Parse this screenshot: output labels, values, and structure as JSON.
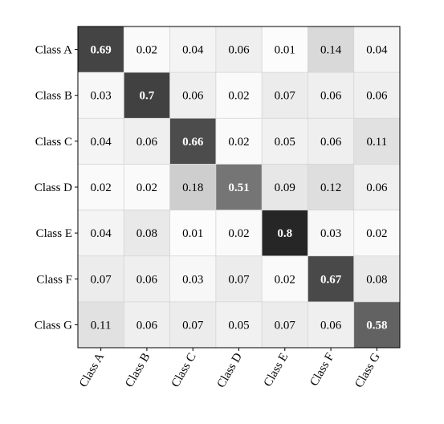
{
  "chart_data": {
    "type": "heatmap",
    "title": "",
    "xlabel": "",
    "ylabel": "",
    "row_labels": [
      "Class A",
      "Class B",
      "Class C",
      "Class D",
      "Class E",
      "Class F",
      "Class G"
    ],
    "col_labels": [
      "Class A",
      "Class B",
      "Class C",
      "Class D",
      "Class E",
      "Class F",
      "Class G"
    ],
    "values": [
      [
        0.69,
        0.02,
        0.04,
        0.06,
        0.01,
        0.14,
        0.04
      ],
      [
        0.03,
        0.7,
        0.06,
        0.02,
        0.07,
        0.06,
        0.06
      ],
      [
        0.04,
        0.06,
        0.66,
        0.02,
        0.05,
        0.06,
        0.11
      ],
      [
        0.02,
        0.02,
        0.18,
        0.51,
        0.09,
        0.12,
        0.06
      ],
      [
        0.04,
        0.08,
        0.01,
        0.02,
        0.8,
        0.03,
        0.02
      ],
      [
        0.07,
        0.06,
        0.03,
        0.07,
        0.02,
        0.67,
        0.08
      ],
      [
        0.11,
        0.06,
        0.07,
        0.05,
        0.07,
        0.06,
        0.58
      ]
    ],
    "colormap": "greys",
    "vmin": 0.0,
    "vmax": 0.8,
    "grid": true,
    "colors": {
      "low": "#ffffff",
      "high": "#262626",
      "grid_line": "#d4d4d4",
      "frame": "#000000",
      "text_dark": "#000000",
      "text_light": "#ffffff"
    }
  }
}
